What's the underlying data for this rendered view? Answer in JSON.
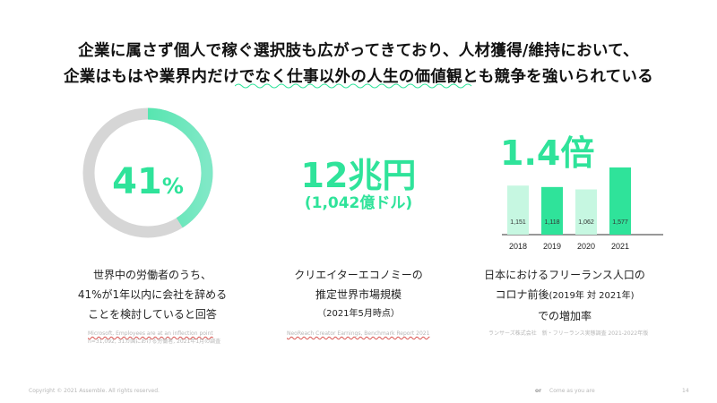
{
  "header": {
    "line1": "企業に属さず個人で稼ぐ選択肢も広がってきており、人材獲得/維持において、",
    "line2": "企業はもはや業界内だけでなく仕事以外の人生の価値観とも競争を強いられている"
  },
  "stat1": {
    "value": "41",
    "unit": "%",
    "ratio": 0.41,
    "desc_line1": "世界中の労働者のうち、",
    "desc_line2": "41%が1年以内に会社を辞める",
    "desc_line3": "ことを検討していると回答",
    "source_line1": "Microsoft, Employees are at an inflection point",
    "source_line2": "n=31,092, 31カ国における労働者, 2021年1月の調査"
  },
  "stat2": {
    "value": "12兆円",
    "sub": "(1,042億ドル)",
    "desc_line1": "クリエイターエコノミーの",
    "desc_line2": "推定世界市場規模",
    "desc_line3": "（2021年5月時点）",
    "source": "NeoReach Creator Earnings, Benchmark Report 2021"
  },
  "stat3": {
    "value": "1.4倍",
    "desc_line1": "日本におけるフリーランス人口の",
    "desc_line2_a": "コロナ前後",
    "desc_line2_b": "(2019年 対 2021年)",
    "desc_line3": "での増加率",
    "source": "ランサーズ株式会社　新・フリーランス実態調査 2021-2022年版"
  },
  "chart_data": {
    "type": "bar",
    "categories": [
      "2018",
      "2019",
      "2020",
      "2021"
    ],
    "values": [
      1151,
      1118,
      1062,
      1577
    ],
    "value_labels": [
      "1,151",
      "1,118",
      "1,062",
      "1,577"
    ],
    "colors": [
      "#c6f7e1",
      "#2fe39a",
      "#c6f7e1",
      "#2fe39a"
    ],
    "title": "",
    "xlabel": "",
    "ylabel": ""
  },
  "colors": {
    "accent": "#2fe39a",
    "accent_light": "#c6f7e1",
    "donut_track": "#d6d6d6",
    "donut_gradient_end": "#7fe8c6"
  },
  "footer": {
    "copyright": "Copyright © 2021 Assemble. All rights reserved.",
    "brand": "or",
    "tagline": "Come as you are",
    "page": "14"
  }
}
